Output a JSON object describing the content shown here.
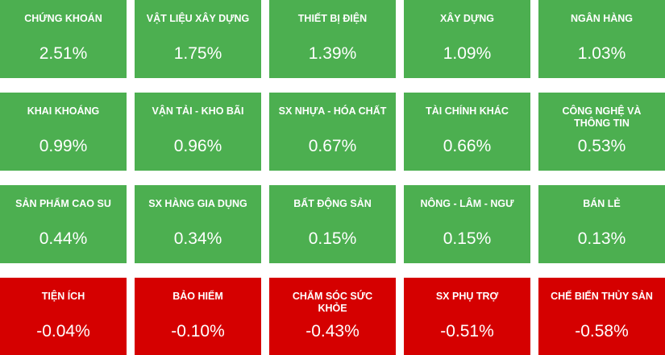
{
  "tiles": [
    {
      "name": "CHỨNG KHOÁN",
      "change": "2.51%",
      "color": "#4caf50"
    },
    {
      "name": "VẬT LIỆU XÂY DỰNG",
      "change": "1.75%",
      "color": "#4caf50"
    },
    {
      "name": "THIẾT BỊ ĐIỆN",
      "change": "1.39%",
      "color": "#4caf50"
    },
    {
      "name": "XÂY DỰNG",
      "change": "1.09%",
      "color": "#4caf50"
    },
    {
      "name": "NGÂN HÀNG",
      "change": "1.03%",
      "color": "#4caf50"
    },
    {
      "name": "KHAI KHOÁNG",
      "change": "0.99%",
      "color": "#4caf50"
    },
    {
      "name": "VẬN TẢI - KHO BÃI",
      "change": "0.96%",
      "color": "#4caf50"
    },
    {
      "name": "SX NHỰA - HÓA CHẤT",
      "change": "0.67%",
      "color": "#4caf50"
    },
    {
      "name": "TÀI CHÍNH KHÁC",
      "change": "0.66%",
      "color": "#4caf50"
    },
    {
      "name": "CÔNG NGHỆ VÀ THÔNG TIN",
      "change": "0.53%",
      "color": "#4caf50"
    },
    {
      "name": "SẢN PHẨM CAO SU",
      "change": "0.44%",
      "color": "#4caf50"
    },
    {
      "name": "SX HÀNG GIA DỤNG",
      "change": "0.34%",
      "color": "#4caf50"
    },
    {
      "name": "BẤT ĐỘNG SẢN",
      "change": "0.15%",
      "color": "#4caf50"
    },
    {
      "name": "NÔNG - LÂM - NGƯ",
      "change": "0.15%",
      "color": "#4caf50"
    },
    {
      "name": "BÁN LẺ",
      "change": "0.13%",
      "color": "#4caf50"
    },
    {
      "name": "TIỆN ÍCH",
      "change": "-0.04%",
      "color": "#d50000"
    },
    {
      "name": "BẢO HIỂM",
      "change": "-0.10%",
      "color": "#d50000"
    },
    {
      "name": "CHĂM SÓC SỨC KHỎE",
      "change": "-0.43%",
      "color": "#d50000"
    },
    {
      "name": "SX PHỤ TRỢ",
      "change": "-0.51%",
      "color": "#d50000"
    },
    {
      "name": "CHẾ BIẾN THỦY SẢN",
      "change": "-0.58%",
      "color": "#d50000"
    }
  ]
}
